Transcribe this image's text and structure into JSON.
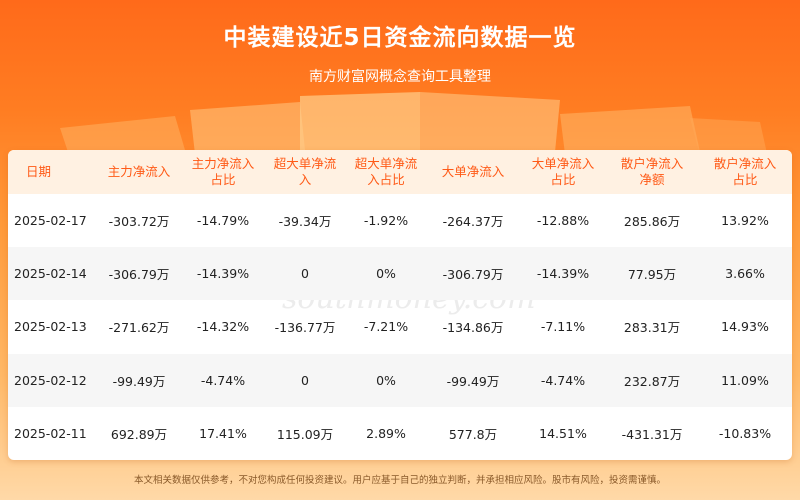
{
  "header": {
    "title": "中装建设近5日资金流向数据一览",
    "subtitle": "南方财富网概念查询工具整理"
  },
  "table": {
    "columns": [
      [
        "日期"
      ],
      [
        "主力净流入"
      ],
      [
        "主力净流入",
        "占比"
      ],
      [
        "超大单净流",
        "入"
      ],
      [
        "超大单净流",
        "入占比"
      ],
      [
        "大单净流入"
      ],
      [
        "大单净流入",
        "占比"
      ],
      [
        "散户净流入",
        "净额"
      ],
      [
        "散户净流入",
        "占比"
      ]
    ],
    "rows": [
      [
        "2025-02-17",
        "-303.72万",
        "-14.79%",
        "-39.34万",
        "-1.92%",
        "-264.37万",
        "-12.88%",
        "285.86万",
        "13.92%"
      ],
      [
        "2025-02-14",
        "-306.79万",
        "-14.39%",
        "0",
        "0%",
        "-306.79万",
        "-14.39%",
        "77.95万",
        "3.66%"
      ],
      [
        "2025-02-13",
        "-271.62万",
        "-14.32%",
        "-136.77万",
        "-7.21%",
        "-134.86万",
        "-7.11%",
        "283.31万",
        "14.93%"
      ],
      [
        "2025-02-12",
        "-99.49万",
        "-4.74%",
        "0",
        "0%",
        "-99.49万",
        "-4.74%",
        "232.87万",
        "11.09%"
      ],
      [
        "2025-02-11",
        "692.89万",
        "17.41%",
        "115.09万",
        "2.89%",
        "577.8万",
        "14.51%",
        "-431.31万",
        "-10.83%"
      ]
    ]
  },
  "watermark": {
    "brand_cn": "南方财富网",
    "brand_en": "southmoney.com"
  },
  "footer": {
    "disclaimer": "本文相关数据仅供参考，不对您构成任何投资建议。用户应基于自己的独立判断，并承担相应风险。股市有风险，投资需谨慎。"
  },
  "colors": {
    "accent": "#ff5a17",
    "header_row_bg": "#fff1e2",
    "stripe_bg": "#f6f6f6"
  }
}
